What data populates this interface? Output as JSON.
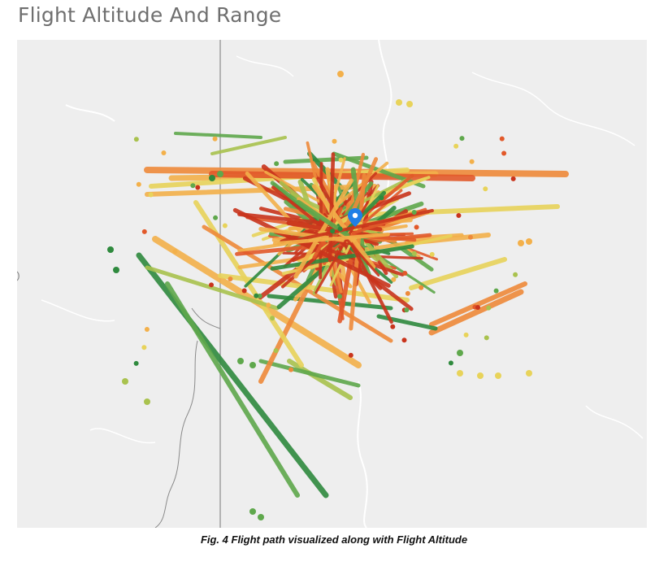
{
  "title": "Flight Altitude And Range",
  "caption": "Fig. 4 Flight path visualized along with Flight Altitude",
  "map": {
    "basemap": "light-gray",
    "marker_icon": "location-pin-icon",
    "marker_color": "#1e7fe6",
    "altitude_palette": [
      "#c9341c",
      "#e2592a",
      "#ee8a3a",
      "#f3b04a",
      "#e8d35a",
      "#a9c24e",
      "#5fa84c",
      "#2f8a3e"
    ]
  }
}
